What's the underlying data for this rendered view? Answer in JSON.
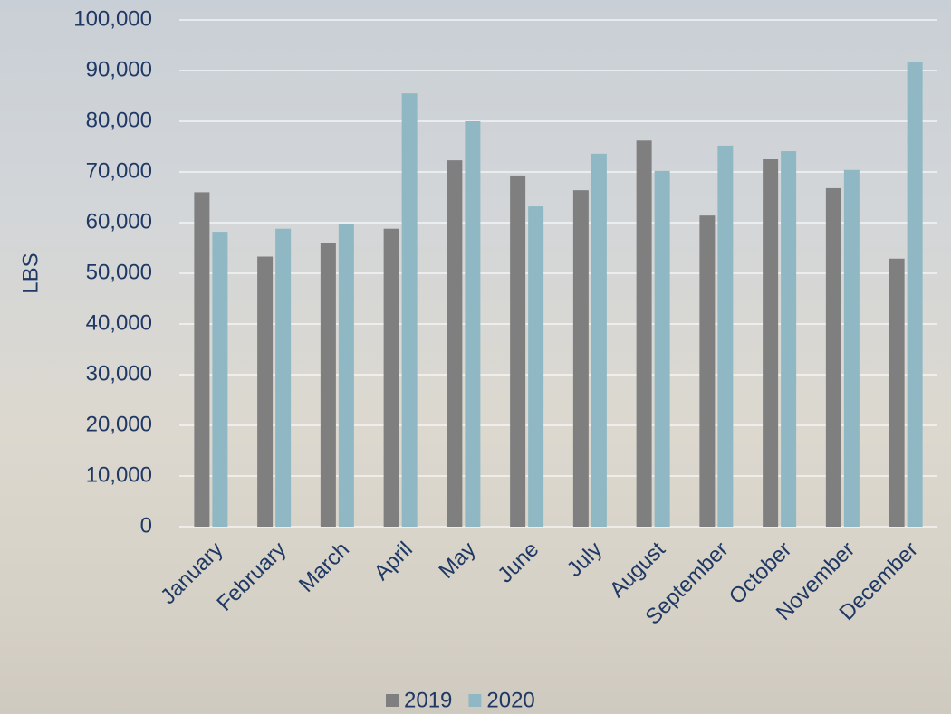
{
  "chart_data": {
    "type": "bar",
    "y_label": "LBS",
    "categories": [
      "January",
      "February",
      "March",
      "April",
      "May",
      "June",
      "July",
      "August",
      "September",
      "October",
      "November",
      "December"
    ],
    "series": [
      {
        "name": "2019",
        "color": "#7f7f7f",
        "values": [
          66000,
          53300,
          56000,
          58800,
          72300,
          69300,
          66400,
          76200,
          61400,
          72500,
          66800,
          52900
        ]
      },
      {
        "name": "2020",
        "color": "#8fb8c4",
        "values": [
          58200,
          58800,
          59800,
          85500,
          80000,
          63200,
          73600,
          70200,
          75200,
          74100,
          70400,
          91600
        ]
      }
    ],
    "ylim": [
      0,
      100000
    ],
    "yticks": [
      0,
      {
        "value": 10000,
        "label": "10,000"
      },
      {
        "value": 20000,
        "label": "20,000"
      },
      {
        "value": 30000,
        "label": "30,000"
      },
      {
        "value": 40000,
        "label": "40,000"
      },
      {
        "value": 50000,
        "label": "50,000"
      },
      {
        "value": 60000,
        "label": "60,000"
      },
      {
        "value": 70000,
        "label": "70,000"
      },
      {
        "value": 80000,
        "label": "80,000"
      },
      {
        "value": 90000,
        "label": "90,000"
      },
      {
        "value": 100000,
        "label": "100,000"
      }
    ],
    "grid": true,
    "legend": "bottom"
  }
}
